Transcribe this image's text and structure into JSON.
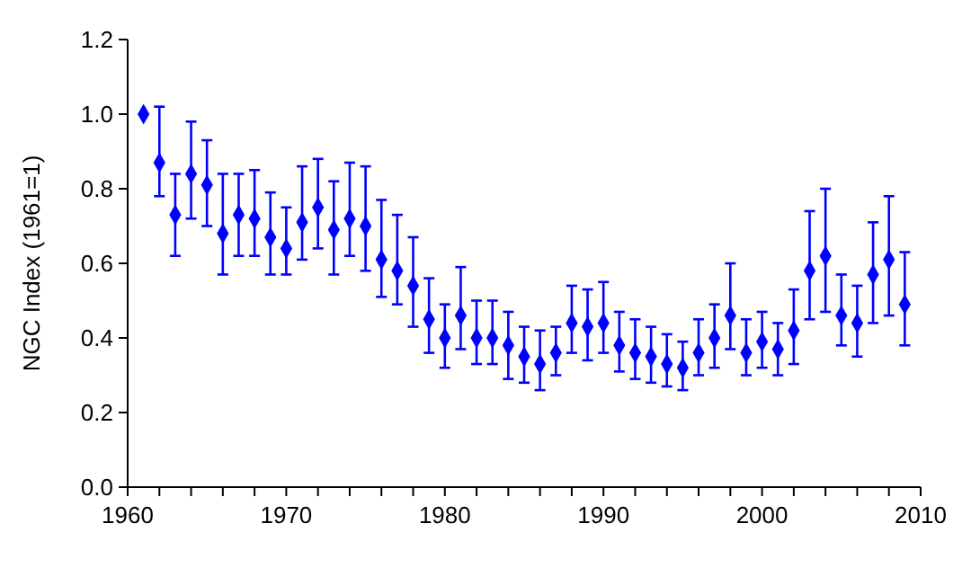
{
  "chart_data": {
    "type": "scatter",
    "ylabel": "NGC Index (1961=1)",
    "x": [
      1961,
      1962,
      1963,
      1964,
      1965,
      1966,
      1967,
      1968,
      1969,
      1970,
      1971,
      1972,
      1973,
      1974,
      1975,
      1976,
      1977,
      1978,
      1979,
      1980,
      1981,
      1982,
      1983,
      1984,
      1985,
      1986,
      1987,
      1988,
      1989,
      1990,
      1991,
      1992,
      1993,
      1994,
      1995,
      1996,
      1997,
      1998,
      1999,
      2000,
      2001,
      2002,
      2003,
      2004,
      2005,
      2006,
      2007,
      2008,
      2009
    ],
    "series": [
      {
        "color": "#0000ff",
        "values": [
          1.0,
          0.87,
          0.73,
          0.84,
          0.81,
          0.68,
          0.73,
          0.72,
          0.67,
          0.64,
          0.71,
          0.75,
          0.69,
          0.72,
          0.7,
          0.61,
          0.58,
          0.54,
          0.45,
          0.4,
          0.46,
          0.4,
          0.4,
          0.38,
          0.35,
          0.33,
          0.36,
          0.44,
          0.43,
          0.44,
          0.38,
          0.36,
          0.35,
          0.33,
          0.32,
          0.36,
          0.4,
          0.46,
          0.36,
          0.39,
          0.37,
          0.42,
          0.58,
          0.62,
          0.46,
          0.44,
          0.57,
          0.61,
          0.49
        ],
        "errors": [
          null,
          [
            0.78,
            1.02
          ],
          [
            0.62,
            0.84
          ],
          [
            0.72,
            0.98
          ],
          [
            0.7,
            0.93
          ],
          [
            0.57,
            0.84
          ],
          [
            0.62,
            0.84
          ],
          [
            0.62,
            0.85
          ],
          [
            0.57,
            0.79
          ],
          [
            0.57,
            0.75
          ],
          [
            0.61,
            0.86
          ],
          [
            0.64,
            0.88
          ],
          [
            0.57,
            0.82
          ],
          [
            0.62,
            0.87
          ],
          [
            0.58,
            0.86
          ],
          [
            0.51,
            0.77
          ],
          [
            0.49,
            0.73
          ],
          [
            0.43,
            0.67
          ],
          [
            0.36,
            0.56
          ],
          [
            0.32,
            0.49
          ],
          [
            0.37,
            0.59
          ],
          [
            0.33,
            0.5
          ],
          [
            0.33,
            0.5
          ],
          [
            0.29,
            0.47
          ],
          [
            0.28,
            0.43
          ],
          [
            0.26,
            0.42
          ],
          [
            0.3,
            0.43
          ],
          [
            0.36,
            0.54
          ],
          [
            0.34,
            0.53
          ],
          [
            0.36,
            0.55
          ],
          [
            0.31,
            0.47
          ],
          [
            0.29,
            0.45
          ],
          [
            0.28,
            0.43
          ],
          [
            0.27,
            0.41
          ],
          [
            0.26,
            0.39
          ],
          [
            0.3,
            0.45
          ],
          [
            0.32,
            0.49
          ],
          [
            0.37,
            0.6
          ],
          [
            0.3,
            0.45
          ],
          [
            0.32,
            0.47
          ],
          [
            0.3,
            0.44
          ],
          [
            0.33,
            0.53
          ],
          [
            0.45,
            0.74
          ],
          [
            0.47,
            0.8
          ],
          [
            0.38,
            0.57
          ],
          [
            0.35,
            0.54
          ],
          [
            0.44,
            0.71
          ],
          [
            0.46,
            0.78
          ],
          [
            0.38,
            0.63
          ]
        ]
      }
    ],
    "marker": "diamond",
    "grid": false,
    "xlim": [
      1960,
      2010
    ],
    "xticks": [
      1960,
      {
        "value": 1962,
        "label": null
      },
      {
        "value": 1964,
        "label": null
      },
      {
        "value": 1966,
        "label": null
      },
      {
        "value": 1968,
        "label": null
      },
      1970,
      {
        "value": 1972,
        "label": null
      },
      {
        "value": 1974,
        "label": null
      },
      {
        "value": 1976,
        "label": null
      },
      {
        "value": 1978,
        "label": null
      },
      1980,
      {
        "value": 1982,
        "label": null
      },
      {
        "value": 1984,
        "label": null
      },
      {
        "value": 1986,
        "label": null
      },
      {
        "value": 1988,
        "label": null
      },
      1990,
      {
        "value": 1992,
        "label": null
      },
      {
        "value": 1994,
        "label": null
      },
      {
        "value": 1996,
        "label": null
      },
      {
        "value": 1998,
        "label": null
      },
      2000,
      {
        "value": 2002,
        "label": null
      },
      {
        "value": 2004,
        "label": null
      },
      {
        "value": 2006,
        "label": null
      },
      {
        "value": 2008,
        "label": null
      },
      2010
    ],
    "ylim": [
      0,
      1.2
    ],
    "yticks": [
      {
        "value": 0,
        "label": "0.0"
      },
      {
        "value": 0.2,
        "label": "0.2"
      },
      {
        "value": 0.4,
        "label": "0.4"
      },
      {
        "value": 0.6,
        "label": "0.6"
      },
      {
        "value": 0.8,
        "label": "0.8"
      },
      {
        "value": 1,
        "label": "1.0"
      },
      {
        "value": 1.2,
        "label": "1.2"
      }
    ]
  }
}
